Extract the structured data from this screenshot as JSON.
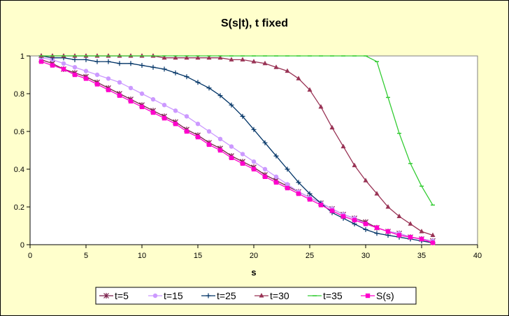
{
  "chart_data": {
    "type": "line",
    "title": "S(s|t), t fixed",
    "xlabel": "s",
    "ylabel": "",
    "xlim": [
      0,
      40
    ],
    "ylim": [
      0,
      1
    ],
    "xticks": [
      0,
      5,
      10,
      15,
      20,
      25,
      30,
      35,
      40
    ],
    "yticks": [
      0,
      0.2,
      0.4,
      0.6,
      0.8,
      1
    ],
    "ytick_labels": [
      "0",
      "0.2",
      "0.4",
      "0.6",
      "0.8",
      "1"
    ],
    "plot_background": "#ffffff",
    "grid": false,
    "legend_position": "bottom",
    "x": [
      1,
      2,
      3,
      4,
      5,
      6,
      7,
      8,
      9,
      10,
      11,
      12,
      13,
      14,
      15,
      16,
      17,
      18,
      19,
      20,
      21,
      22,
      23,
      24,
      25,
      26,
      27,
      28,
      29,
      30,
      31,
      32,
      33,
      34,
      35,
      36
    ],
    "series": [
      {
        "name": "t=5",
        "color": "#7a1e4a",
        "marker": "star",
        "x": [
          1,
          2,
          3,
          4,
          5,
          6,
          7,
          8,
          9,
          10,
          11,
          12,
          13,
          14,
          15,
          16,
          17,
          18,
          19,
          20,
          21,
          22,
          23,
          24,
          25,
          26,
          27,
          28,
          29,
          30,
          31,
          32,
          33,
          34,
          35,
          36
        ],
        "values": [
          0.98,
          0.96,
          0.93,
          0.91,
          0.89,
          0.86,
          0.83,
          0.8,
          0.77,
          0.74,
          0.71,
          0.68,
          0.65,
          0.61,
          0.58,
          0.54,
          0.51,
          0.47,
          0.44,
          0.41,
          0.37,
          0.34,
          0.31,
          0.28,
          0.25,
          0.22,
          0.19,
          0.16,
          0.14,
          0.12,
          0.09,
          0.07,
          0.06,
          0.04,
          0.03,
          0.02
        ]
      },
      {
        "name": "t=15",
        "color": "#cc99ff",
        "marker": "circle",
        "x": [
          1,
          2,
          3,
          4,
          5,
          6,
          7,
          8,
          9,
          10,
          11,
          12,
          13,
          14,
          15,
          16,
          17,
          18,
          19,
          20,
          21,
          22,
          23,
          24,
          25,
          26,
          27,
          28,
          29,
          30,
          31,
          32,
          33,
          34,
          35,
          36
        ],
        "values": [
          0.99,
          0.98,
          0.96,
          0.94,
          0.92,
          0.9,
          0.88,
          0.86,
          0.83,
          0.8,
          0.77,
          0.74,
          0.71,
          0.68,
          0.64,
          0.6,
          0.56,
          0.52,
          0.48,
          0.44,
          0.4,
          0.36,
          0.32,
          0.28,
          0.25,
          0.22,
          0.19,
          0.16,
          0.14,
          0.11,
          0.09,
          0.07,
          0.06,
          0.04,
          0.03,
          0.02
        ]
      },
      {
        "name": "t=25",
        "color": "#003366",
        "marker": "plus",
        "x": [
          1,
          2,
          3,
          4,
          5,
          6,
          7,
          8,
          9,
          10,
          11,
          12,
          13,
          14,
          15,
          16,
          17,
          18,
          19,
          20,
          21,
          22,
          23,
          24,
          25,
          26,
          27,
          28,
          29,
          30,
          31,
          32,
          33,
          34,
          35,
          36
        ],
        "values": [
          1.0,
          0.99,
          0.99,
          0.98,
          0.98,
          0.97,
          0.97,
          0.96,
          0.96,
          0.95,
          0.94,
          0.93,
          0.91,
          0.89,
          0.86,
          0.83,
          0.79,
          0.74,
          0.68,
          0.61,
          0.54,
          0.47,
          0.4,
          0.33,
          0.27,
          0.22,
          0.17,
          0.14,
          0.11,
          0.08,
          0.06,
          0.05,
          0.04,
          0.03,
          0.02,
          0.01
        ]
      },
      {
        "name": "t=30",
        "color": "#993355",
        "marker": "triangle",
        "x": [
          1,
          2,
          3,
          4,
          5,
          6,
          7,
          8,
          9,
          10,
          11,
          12,
          13,
          14,
          15,
          16,
          17,
          18,
          19,
          20,
          21,
          22,
          23,
          24,
          25,
          26,
          27,
          28,
          29,
          30,
          31,
          32,
          33,
          34,
          35,
          36
        ],
        "values": [
          1.0,
          1.0,
          1.0,
          1.0,
          1.0,
          1.0,
          1.0,
          1.0,
          1.0,
          1.0,
          1.0,
          0.99,
          0.99,
          0.99,
          0.99,
          0.99,
          0.99,
          0.98,
          0.98,
          0.97,
          0.96,
          0.94,
          0.92,
          0.88,
          0.82,
          0.73,
          0.62,
          0.52,
          0.42,
          0.34,
          0.27,
          0.2,
          0.15,
          0.11,
          0.07,
          0.05
        ]
      },
      {
        "name": "t=35",
        "color": "#33cc33",
        "marker": "dash",
        "x": [
          1,
          2,
          3,
          4,
          5,
          6,
          7,
          8,
          9,
          10,
          11,
          12,
          13,
          14,
          15,
          16,
          17,
          18,
          19,
          20,
          21,
          22,
          23,
          24,
          25,
          26,
          27,
          28,
          29,
          30,
          31,
          32,
          33,
          34,
          35,
          36
        ],
        "values": [
          1.0,
          1.0,
          1.0,
          1.0,
          1.0,
          1.0,
          1.0,
          1.0,
          1.0,
          1.0,
          1.0,
          1.0,
          1.0,
          1.0,
          1.0,
          1.0,
          1.0,
          1.0,
          1.0,
          1.0,
          1.0,
          1.0,
          1.0,
          1.0,
          1.0,
          1.0,
          1.0,
          1.0,
          1.0,
          1.0,
          0.97,
          0.78,
          0.59,
          0.43,
          0.31,
          0.21
        ]
      },
      {
        "name": "S(s)",
        "color": "#ff00cc",
        "marker": "square",
        "x": [
          1,
          2,
          3,
          4,
          5,
          6,
          7,
          8,
          9,
          10,
          11,
          12,
          13,
          14,
          15,
          16,
          17,
          18,
          19,
          20,
          21,
          22,
          23,
          24,
          25,
          26,
          27,
          28,
          29,
          30,
          31,
          32,
          33,
          34,
          35,
          36
        ],
        "values": [
          0.97,
          0.95,
          0.93,
          0.9,
          0.88,
          0.85,
          0.82,
          0.79,
          0.76,
          0.73,
          0.7,
          0.67,
          0.64,
          0.6,
          0.57,
          0.53,
          0.5,
          0.46,
          0.43,
          0.4,
          0.36,
          0.33,
          0.3,
          0.27,
          0.24,
          0.21,
          0.18,
          0.15,
          0.13,
          0.11,
          0.09,
          0.07,
          0.05,
          0.04,
          0.03,
          0.01
        ]
      }
    ]
  }
}
